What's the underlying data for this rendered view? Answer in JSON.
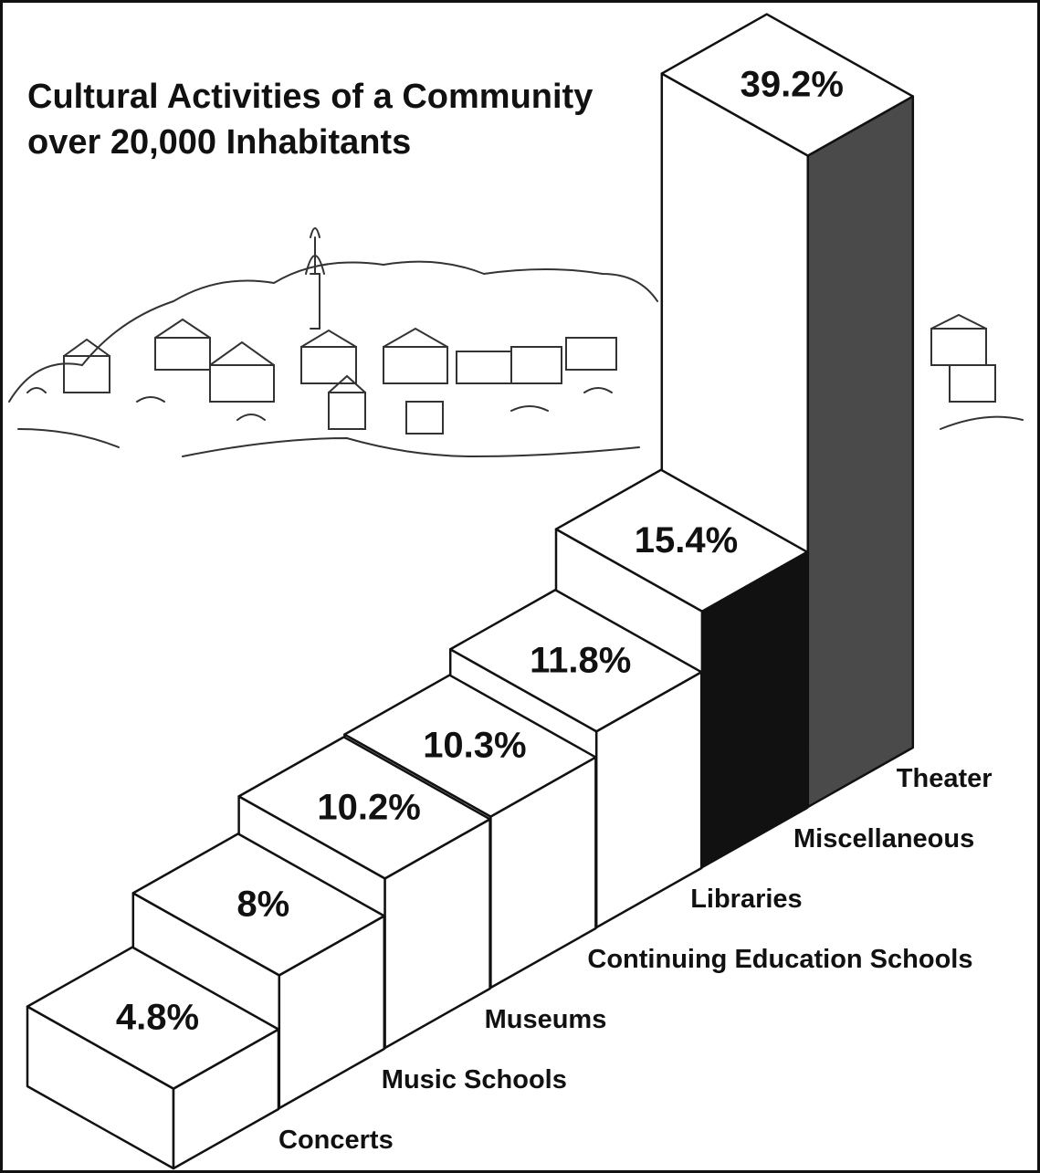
{
  "chart_data": {
    "type": "bar3d",
    "title": [
      "Cultural Activities of a Community",
      "over 20,000 Inhabitants"
    ],
    "categories": [
      "Concerts",
      "Music Schools",
      "Museums",
      "Continuing Education Schools",
      "Libraries",
      "Miscellaneous",
      "Theater"
    ],
    "values": [
      4.8,
      8,
      10.2,
      10.3,
      11.8,
      15.4,
      39.2
    ],
    "value_labels": [
      "4.8%",
      "8%",
      "10.2%",
      "10.3%",
      "11.8%",
      "15.4%",
      "39.2%"
    ],
    "colors": [
      "#ffffff",
      "#ffffff",
      "#ffffff",
      "#ffffff",
      "#ffffff",
      "#111111",
      "#4a4a4a"
    ]
  }
}
